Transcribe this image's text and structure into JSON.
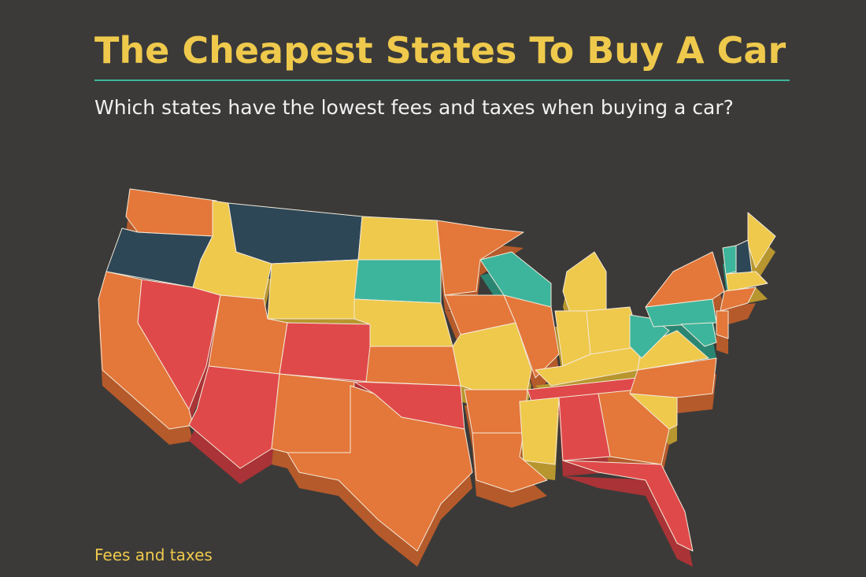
{
  "header": {
    "title": "The Cheapest States To Buy A Car",
    "subtitle": "Which states have the lowest fees and taxes when buying a car?"
  },
  "legend": {
    "title": "Fees and taxes"
  }
}
